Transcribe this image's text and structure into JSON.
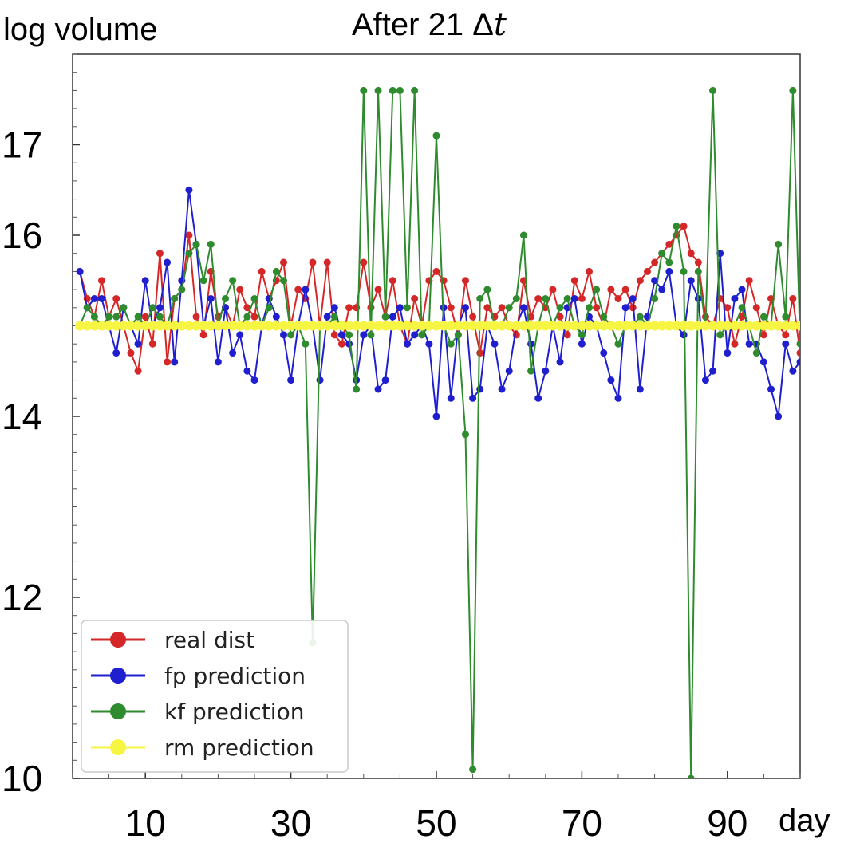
{
  "chart_data": {
    "type": "line",
    "title_prefix": "After 21 ",
    "title_symbol": "Δ",
    "title_var": "t",
    "ylabel": "log volume",
    "xlabel": "day",
    "xlim": [
      0,
      100
    ],
    "ylim": [
      10,
      18
    ],
    "x_ticks": [
      10,
      30,
      50,
      70,
      90
    ],
    "y_ticks": [
      10,
      12,
      14,
      16,
      17
    ],
    "grid": false,
    "legend_position": "bottom-left",
    "series": [
      {
        "name": "real dist",
        "color": "#d62728",
        "values": [
          15.6,
          15.3,
          15.1,
          15.5,
          15.1,
          15.3,
          15.0,
          14.7,
          14.5,
          15.1,
          14.8,
          15.8,
          14.6,
          15.3,
          15.4,
          16.0,
          15.1,
          14.9,
          15.6,
          15.1,
          15.2,
          15.0,
          15.4,
          15.2,
          15.1,
          15.6,
          15.3,
          15.5,
          15.7,
          15.0,
          15.4,
          15.3,
          15.7,
          15.0,
          15.7,
          14.9,
          14.8,
          15.2,
          15.2,
          15.7,
          15.2,
          15.4,
          15.1,
          15.5,
          15.0,
          14.8,
          15.3,
          15.0,
          15.5,
          15.6,
          15.5,
          15.2,
          14.9,
          15.5,
          15.1,
          14.7,
          15.2,
          15.1,
          15.2,
          15.0,
          14.9,
          15.5,
          15.1,
          15.3,
          15.2,
          15.4,
          15.1,
          14.9,
          15.5,
          15.3,
          15.6,
          15.2,
          15.0,
          15.4,
          15.3,
          15.4,
          15.2,
          15.5,
          15.6,
          15.7,
          15.8,
          15.9,
          16.0,
          16.1,
          15.8,
          15.7,
          15.1,
          15.0,
          15.3,
          15.2,
          14.8,
          15.1,
          15.5,
          15.2,
          14.9,
          15.3,
          15.0,
          14.9,
          15.3,
          14.7
        ]
      },
      {
        "name": "fp prediction",
        "color": "#1f1fd0",
        "values": [
          15.6,
          15.2,
          15.3,
          15.3,
          15.0,
          14.7,
          15.2,
          15.0,
          14.8,
          15.5,
          15.0,
          15.2,
          15.7,
          14.6,
          15.5,
          16.5,
          15.9,
          15.0,
          15.3,
          14.6,
          15.2,
          14.7,
          14.9,
          14.5,
          14.4,
          15.0,
          15.3,
          15.1,
          14.9,
          14.4,
          15.0,
          15.4,
          15.0,
          14.4,
          15.1,
          15.2,
          14.9,
          14.8,
          14.4,
          14.9,
          15.0,
          14.3,
          14.4,
          15.1,
          15.2,
          14.8,
          14.9,
          15.0,
          14.8,
          14.0,
          15.2,
          14.2,
          15.0,
          15.2,
          14.2,
          14.3,
          15.0,
          14.8,
          14.3,
          14.5,
          15.0,
          15.2,
          14.8,
          14.2,
          14.5,
          15.0,
          14.6,
          15.2,
          15.3,
          14.8,
          15.1,
          15.0,
          14.7,
          14.4,
          14.2,
          15.2,
          15.3,
          14.3,
          15.1,
          15.5,
          15.4,
          15.6,
          15.0,
          14.9,
          15.5,
          15.3,
          14.4,
          14.5,
          15.8,
          14.7,
          15.3,
          15.4,
          14.8,
          14.8,
          14.6,
          14.3,
          14.0,
          14.8,
          14.5,
          14.6
        ]
      },
      {
        "name": "kf prediction",
        "color": "#2e8b2e",
        "values": [
          15.0,
          15.2,
          15.1,
          15.0,
          15.1,
          15.1,
          15.2,
          15.0,
          15.1,
          15.0,
          15.2,
          15.1,
          15.0,
          15.3,
          15.4,
          15.8,
          15.9,
          15.5,
          15.9,
          15.0,
          15.3,
          15.5,
          15.0,
          15.1,
          15.3,
          15.0,
          15.2,
          15.6,
          15.5,
          14.9,
          15.0,
          14.8,
          11.5,
          15.0,
          15.0,
          15.1,
          15.0,
          14.9,
          14.3,
          17.6,
          14.9,
          17.6,
          15.1,
          17.6,
          17.6,
          15.2,
          17.6,
          14.9,
          15.0,
          17.1,
          15.0,
          14.8,
          14.9,
          13.8,
          10.1,
          15.3,
          15.4,
          15.0,
          15.0,
          15.2,
          15.3,
          16.0,
          14.5,
          15.0,
          15.3,
          15.0,
          15.2,
          15.3,
          15.0,
          14.9,
          15.2,
          15.4,
          15.1,
          15.0,
          14.8,
          15.0,
          15.0,
          15.1,
          15.0,
          15.3,
          15.8,
          15.7,
          16.1,
          15.6,
          10.0,
          15.6,
          15.0,
          17.6,
          14.9,
          15.0,
          15.0,
          15.2,
          15.0,
          14.7,
          15.1,
          15.0,
          15.9,
          15.1,
          17.6,
          14.8
        ]
      },
      {
        "name": "rm prediction",
        "color": "#f5f542",
        "values": [
          15.0,
          15.0,
          15.0,
          15.0,
          15.0,
          15.0,
          15.0,
          15.0,
          15.0,
          15.0,
          15.0,
          15.0,
          15.0,
          15.0,
          15.0,
          15.0,
          15.0,
          15.0,
          15.0,
          15.0,
          15.0,
          15.0,
          15.0,
          15.0,
          15.0,
          15.0,
          15.0,
          15.0,
          15.0,
          15.0,
          15.0,
          15.0,
          15.0,
          15.0,
          15.0,
          15.0,
          15.0,
          15.0,
          15.0,
          15.0,
          15.0,
          15.0,
          15.0,
          15.0,
          15.0,
          15.0,
          15.0,
          15.0,
          15.0,
          15.0,
          15.0,
          15.0,
          15.0,
          15.0,
          15.0,
          15.0,
          15.0,
          15.0,
          15.0,
          15.0,
          15.0,
          15.0,
          15.0,
          15.0,
          15.0,
          15.0,
          15.0,
          15.0,
          15.0,
          15.0,
          15.0,
          15.0,
          15.0,
          15.0,
          15.0,
          15.0,
          15.0,
          15.0,
          15.0,
          15.0,
          15.0,
          15.0,
          15.0,
          15.0,
          15.0,
          15.0,
          15.0,
          15.0,
          15.0,
          15.0,
          15.0,
          15.0,
          15.0,
          15.0,
          15.0,
          15.0,
          15.0,
          15.0,
          15.0,
          15.0
        ]
      }
    ]
  }
}
